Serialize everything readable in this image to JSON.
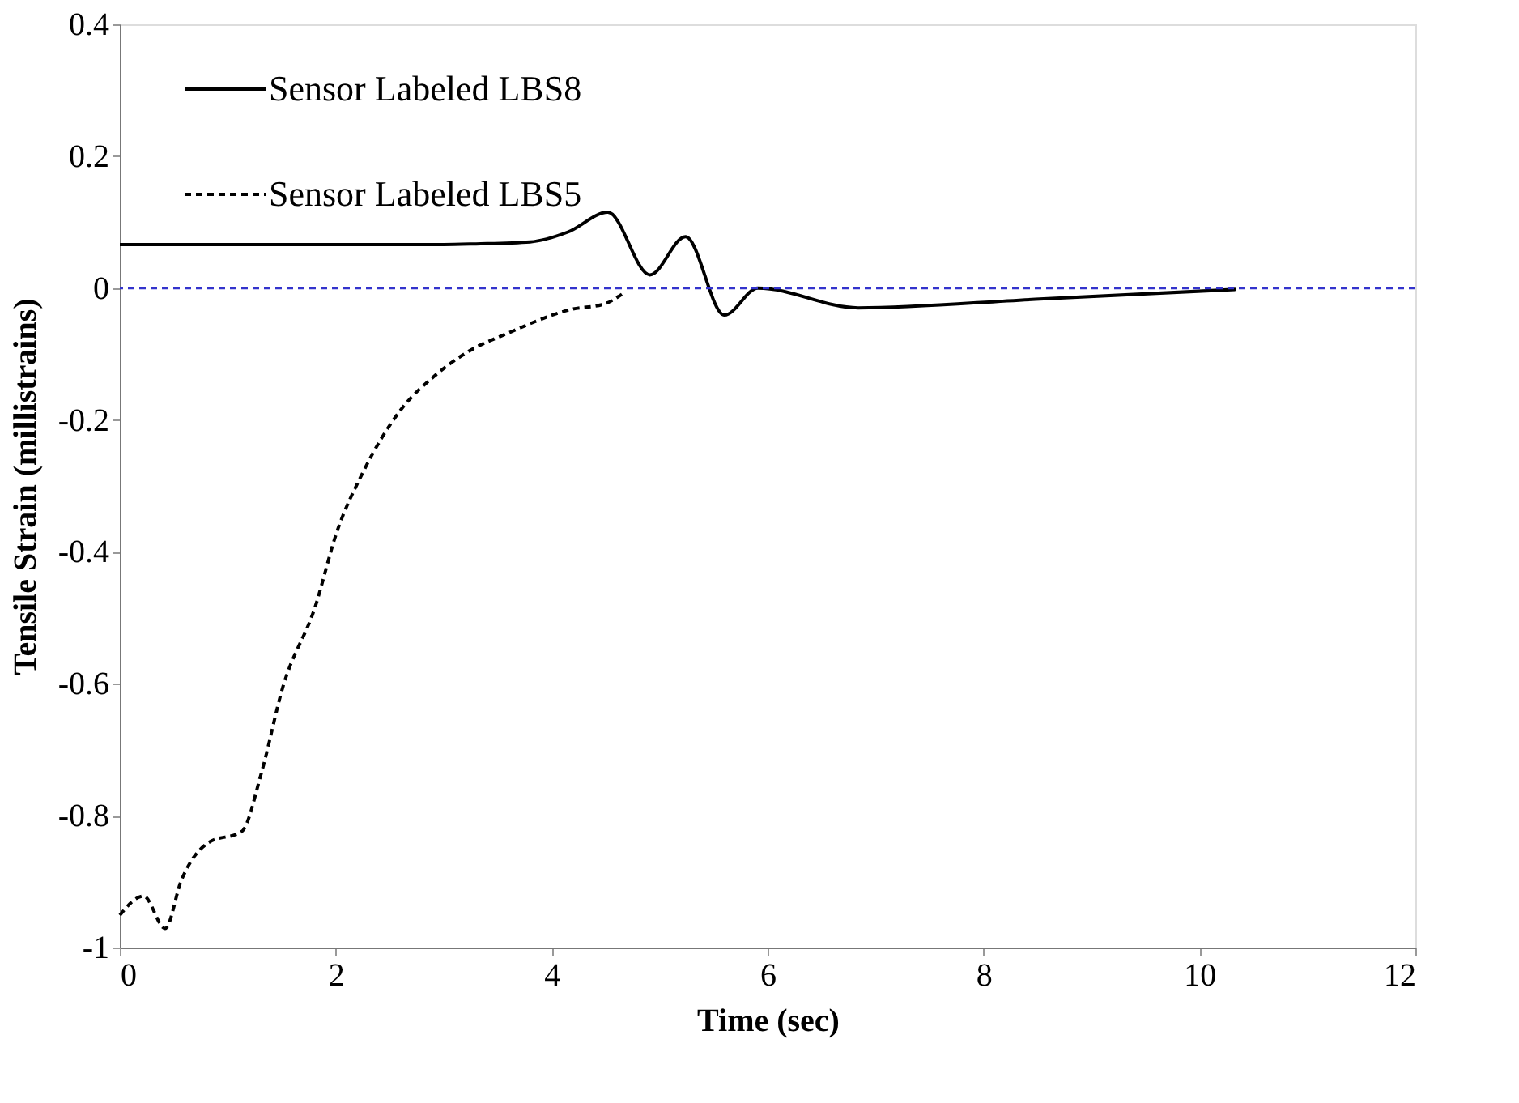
{
  "chart_data": {
    "type": "line",
    "xlabel": "Time (sec)",
    "ylabel": "Tensile Strain (millistrains)",
    "xlim": [
      0,
      12
    ],
    "xticks": [
      0,
      2,
      4,
      6,
      8,
      10,
      12
    ],
    "ylim": [
      -1,
      0.4
    ],
    "yticks": [
      -1,
      -0.8,
      -0.6,
      -0.4,
      -0.2,
      0,
      0.2,
      0.4
    ],
    "grid": false,
    "legend": "top left",
    "marker": "none",
    "series": [
      {
        "name": "Sensor Labeled LBS8",
        "color": "#000000",
        "line_style": "solid",
        "x": [
          0,
          1,
          2,
          3,
          3.3,
          3.8,
          4.15,
          4.52,
          4.91,
          5.24,
          5.6,
          5.91,
          6.84,
          8.48,
          10.34
        ],
        "values": [
          0.066,
          0.066,
          0.066,
          0.066,
          0.067,
          0.07,
          0.085,
          0.115,
          0.02,
          0.078,
          -0.041,
          0,
          -0.03,
          -0.017,
          -0.002
        ]
      },
      {
        "name": "Sensor Labeled LBS5",
        "color": "#000000",
        "line_style": "dashed",
        "x": [
          0,
          0.22,
          0.42,
          0.57,
          0.82,
          1.13,
          1.31,
          1.51,
          1.81,
          2.01,
          2.25,
          2.61,
          2.91,
          3.21,
          3.6,
          4.19,
          4.49,
          4.67
        ],
        "values": [
          -0.951,
          -0.922,
          -0.971,
          -0.898,
          -0.841,
          -0.824,
          -0.736,
          -0.605,
          -0.483,
          -0.37,
          -0.28,
          -0.183,
          -0.134,
          -0.098,
          -0.068,
          -0.032,
          -0.024,
          -0.007
        ]
      }
    ],
    "ref_lines": [
      {
        "axis": "y",
        "value": 0,
        "color": "#3333cc",
        "line_style": "dashed"
      }
    ]
  }
}
